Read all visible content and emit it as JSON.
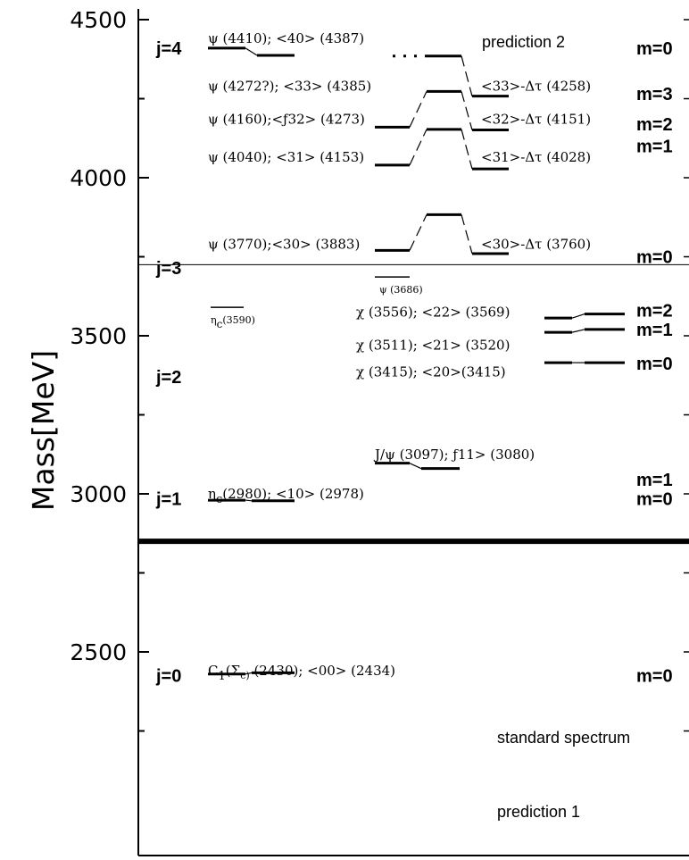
{
  "chart_data": {
    "type": "level-diagram",
    "ylabel": "Mass[MeV]",
    "ylim": [
      2250,
      4500
    ],
    "yticks": [
      2500,
      3000,
      3500,
      4000,
      4500
    ],
    "annotations": {
      "standard": "standard spectrum",
      "pred1": "prediction 1",
      "pred2": "prediction 2"
    },
    "j_labels": [
      {
        "text": "j=4",
        "mass": 4410
      },
      {
        "text": "j=3",
        "mass": 3715
      },
      {
        "text": "j=2",
        "mass": 3370
      },
      {
        "text": "j=1",
        "mass": 2985
      },
      {
        "text": "j=0",
        "mass": 2425
      }
    ],
    "m_labels": [
      {
        "text": "m=0",
        "mass": 4410
      },
      {
        "text": "m=3",
        "mass": 4265
      },
      {
        "text": "m=2",
        "mass": 4170
      },
      {
        "text": "m=1",
        "mass": 4100
      },
      {
        "text": "m=0",
        "mass": 3750
      },
      {
        "text": "m=2",
        "mass": 3580
      },
      {
        "text": "m=1",
        "mass": 3520
      },
      {
        "text": "m=0",
        "mass": 3412
      },
      {
        "text": "m=1",
        "mass": 3045
      },
      {
        "text": "m=0",
        "mass": 2985
      },
      {
        "text": "m=0",
        "mass": 2425
      }
    ],
    "state_labels": [
      {
        "text": "ψ (4410); <40> (4387)",
        "mass": 4440
      },
      {
        "text": "ψ (4272?); <33> (4385)",
        "mass": 4290
      },
      {
        "text": "ψ (4160);<ƒ32> (4273)",
        "mass": 4185
      },
      {
        "text": "ψ (4040); <31> (4153)",
        "mass": 4065
      },
      {
        "text": "ψ (3770);<30> (3883)",
        "mass": 3790
      },
      {
        "text": "<33>-Δτ (4258)",
        "mass": 4290
      },
      {
        "text": "<32>-Δτ (4151)",
        "mass": 4185
      },
      {
        "text": "<31>-Δτ (4028)",
        "mass": 4065
      },
      {
        "text": "<30>-Δτ (3760)",
        "mass": 3790
      },
      {
        "text": "χ (3556); <22> (3569)",
        "mass": 3575
      },
      {
        "text": "χ (3511); <21> (3520)",
        "mass": 3470
      },
      {
        "text": "χ (3415); <20>(3415)",
        "mass": 3385
      },
      {
        "text": "J/ψ (3097); ƒ11> (3080)",
        "mass": 3125
      },
      {
        "text": "η",
        "sub": "c",
        "rest": "(2980); <10> (2978)",
        "mass": 3000
      },
      {
        "text": "C",
        "sub": "1",
        "rest": "(Σ",
        "sub2": "c)",
        "rest2": " (2430); <00> (2434)",
        "mass": 2440
      }
    ],
    "small_labels": [
      {
        "text": "ψ (3686)",
        "mass": 3686
      },
      {
        "text": "η",
        "sub": "c",
        "rest": "(3590)",
        "mass": 3590
      }
    ],
    "levels_standard": [
      {
        "name": "psi4410",
        "mass": 4410
      },
      {
        "name": "psi4160",
        "mass": 4160
      },
      {
        "name": "psi4040",
        "mass": 4040
      },
      {
        "name": "psi3770",
        "mass": 3770
      },
      {
        "name": "psi3686",
        "mass": 3686
      },
      {
        "name": "etac3590",
        "mass": 3590
      },
      {
        "name": "chi3556",
        "mass": 3556
      },
      {
        "name": "chi3511",
        "mass": 3511
      },
      {
        "name": "chi3415",
        "mass": 3415
      },
      {
        "name": "jpsi3097",
        "mass": 3097
      },
      {
        "name": "etac2980",
        "mass": 2980
      },
      {
        "name": "c1-2430",
        "mass": 2430
      }
    ],
    "levels_prediction": [
      {
        "name": "pred4387",
        "mass": 4387
      },
      {
        "name": "pred4385",
        "mass": 4385
      },
      {
        "name": "pred4273",
        "mass": 4273
      },
      {
        "name": "pred4153",
        "mass": 4153
      },
      {
        "name": "pred3883",
        "mass": 3883
      },
      {
        "name": "pred4258",
        "mass": 4258
      },
      {
        "name": "pred4151",
        "mass": 4151
      },
      {
        "name": "pred4028",
        "mass": 4028
      },
      {
        "name": "pred3760",
        "mass": 3760
      },
      {
        "name": "pred3569",
        "mass": 3569
      },
      {
        "name": "pred3520",
        "mass": 3520
      },
      {
        "name": "pred3415",
        "mass": 3415
      },
      {
        "name": "pred3080",
        "mass": 3080
      },
      {
        "name": "pred2978",
        "mass": 2978
      },
      {
        "name": "pred2434",
        "mass": 2434
      }
    ],
    "separator_masses": [
      3725,
      2850
    ]
  }
}
